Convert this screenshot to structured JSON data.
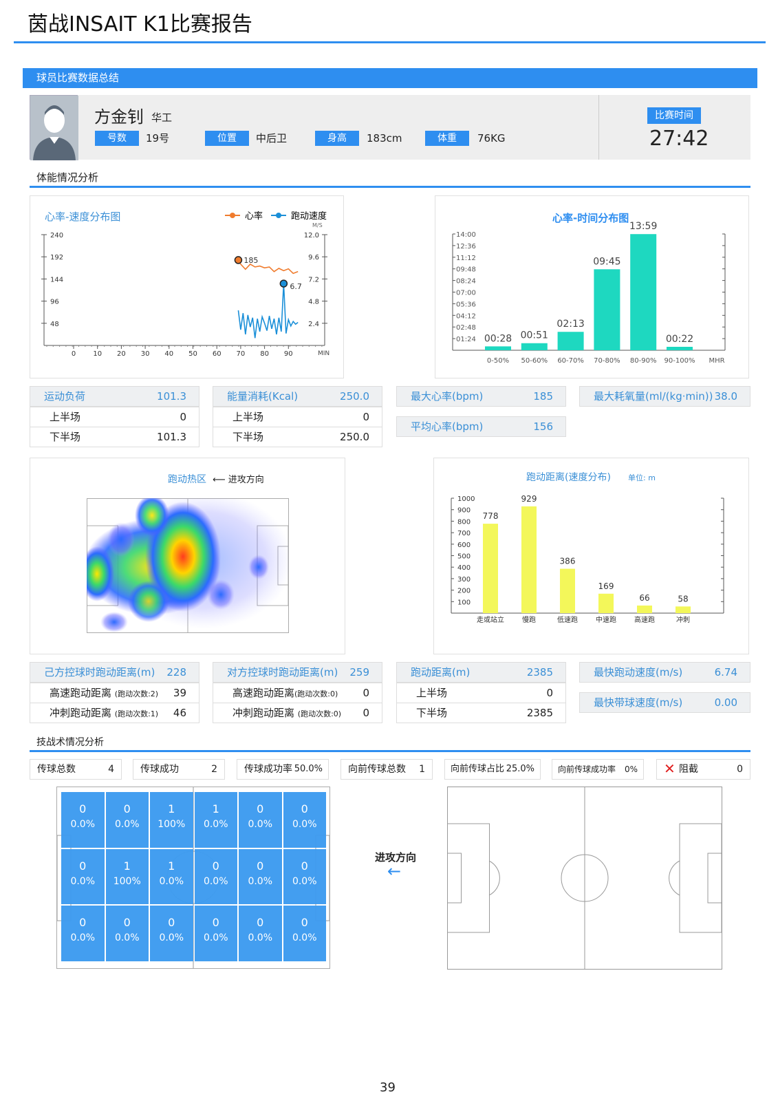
{
  "title": "茵战INSAIT K1比赛报告",
  "summary_section": "球员比赛数据总结",
  "player": {
    "name": "方金钊",
    "team": "华工",
    "number_label": "号数",
    "number": "19号",
    "position_label": "位置",
    "position": "中后卫",
    "height_label": "身高",
    "height": "183cm",
    "weight_label": "体重",
    "weight": "76KG",
    "match_time_label": "比赛时间",
    "match_time": "27:42"
  },
  "fitness_section": "体能情况分析",
  "hr_speed_chart": {
    "title": "心率-速度分布图",
    "legend_hr": "心率",
    "legend_speed": "跑动速度",
    "right_unit": "M/S",
    "x_unit": "MIN",
    "left_ticks": [
      "240",
      "192",
      "144",
      "96",
      "48"
    ],
    "right_ticks": [
      "12.0",
      "9.6",
      "7.2",
      "4.8",
      "2.4"
    ],
    "x_ticks": [
      "0",
      "10",
      "20",
      "30",
      "40",
      "50",
      "60",
      "70",
      "80",
      "90"
    ],
    "hr_peak_label": "185",
    "speed_peak_label": "6.7",
    "hr_color": "#f07c2e",
    "speed_color": "#1a8fd8"
  },
  "chart_data": [
    {
      "type": "line",
      "title": "心率-速度分布图",
      "xlabel": "MIN",
      "series": [
        {
          "name": "心率",
          "x": [
            69,
            70,
            72,
            74,
            76,
            78,
            80,
            82,
            84,
            86,
            88,
            90,
            92,
            94
          ],
          "values": [
            185,
            176,
            165,
            176,
            170,
            172,
            168,
            170,
            160,
            167,
            162,
            166,
            156,
            160
          ]
        },
        {
          "name": "跑动速度",
          "x": [
            69,
            70,
            71,
            72,
            73,
            74,
            75,
            76,
            77,
            78,
            79,
            80,
            81,
            82,
            83,
            84,
            85,
            86,
            87,
            88,
            89,
            90,
            91,
            92,
            93,
            94
          ],
          "values": [
            3.8,
            1.7,
            3.5,
            1.2,
            3.3,
            2.0,
            3.0,
            0.8,
            2.9,
            1.5,
            3.1,
            2.4,
            1.6,
            3.2,
            1.8,
            2.9,
            1.2,
            3.0,
            1.5,
            6.7,
            1.3,
            2.8,
            2.1,
            2.6,
            2.3,
            2.5
          ]
        }
      ],
      "ylim_left": [
        0,
        240
      ],
      "ylim_right": [
        0,
        12.0
      ],
      "xlim": [
        0,
        100
      ]
    },
    {
      "type": "bar",
      "title": "心率-时间分布图",
      "categories": [
        "0-50%",
        "50-60%",
        "60-70%",
        "70-80%",
        "80-90%",
        "90-100%"
      ],
      "values": [
        "00:28",
        "00:51",
        "02:13",
        "09:45",
        "13:59",
        "00:22"
      ],
      "xlabel": "MHR",
      "y_ticks": [
        "14:00",
        "12:36",
        "11:12",
        "09:48",
        "08:24",
        "07:00",
        "05:36",
        "04:12",
        "02:48",
        "01:24"
      ]
    },
    {
      "type": "bar",
      "title": "跑动距离(速度分布)",
      "unit": "单位: m",
      "categories": [
        "走或站立",
        "慢跑",
        "低速跑",
        "中速跑",
        "高速跑",
        "冲刺"
      ],
      "values": [
        778,
        929,
        386,
        169,
        66,
        58
      ],
      "y_ticks": [
        "1000",
        "900",
        "800",
        "700",
        "600",
        "500",
        "400",
        "300",
        "200",
        "100"
      ],
      "ylim": [
        0,
        1000
      ]
    }
  ],
  "hr_time_chart": {
    "color": "#1ed8c0"
  },
  "run_dist_chart": {
    "color": "#f3f75a"
  },
  "load": {
    "label": "运动负荷",
    "value": "101.3",
    "h1_label": "上半场",
    "h1": "0",
    "h2_label": "下半场",
    "h2": "101.3"
  },
  "energy": {
    "label": "能量消耗(Kcal)",
    "value": "250.0",
    "h1_label": "上半场",
    "h1": "0",
    "h2_label": "下半场",
    "h2": "250.0"
  },
  "max_hr": {
    "label": "最大心率(bpm)",
    "value": "185"
  },
  "avg_hr": {
    "label": "平均心率(bpm)",
    "value": "156"
  },
  "vo2": {
    "label": "最大耗氧量(ml/(kg·min))",
    "value": "38.0"
  },
  "heatmap": {
    "title": "跑动热区",
    "direction": "进攻方向"
  },
  "own_poss": {
    "label": "己方控球时跑动距离(m)",
    "value": "228",
    "hs_label": "高速跑动距离",
    "hs_count": "(跑动次数:2)",
    "hs": "39",
    "sp_label": "冲刺跑动距离",
    "sp_count": "(跑动次数:1)",
    "sp": "46"
  },
  "opp_poss": {
    "label": "对方控球时跑动距离(m)",
    "value": "259",
    "hs_label": "高速跑动距离",
    "hs_count": "(跑动次数:0)",
    "hs": "0",
    "sp_label": "冲刺跑动距离",
    "sp_count": "(跑动次数:0)",
    "sp": "0"
  },
  "run_dist": {
    "label": "跑动距离(m)",
    "value": "2385",
    "h1_label": "上半场",
    "h1": "0",
    "h2_label": "下半场",
    "h2": "2385"
  },
  "fastest_run": {
    "label": "最快跑动速度(m/s)",
    "value": "6.74"
  },
  "fastest_dribble": {
    "label": "最快带球速度(m/s)",
    "value": "0.00"
  },
  "skill_section": "技战术情况分析",
  "skills": [
    {
      "label": "传球总数",
      "value": "4"
    },
    {
      "label": "传球成功",
      "value": "2"
    },
    {
      "label": "传球成功率",
      "value": "50.0%"
    },
    {
      "label": "向前传球总数",
      "value": "1"
    },
    {
      "label": "向前传球占比",
      "value": "25.0%"
    },
    {
      "label": "向前传球成功率",
      "value": "0%"
    },
    {
      "label": "阻截",
      "value": "0"
    }
  ],
  "pass_grid": [
    [
      {
        "n": "0",
        "p": "0.0%"
      },
      {
        "n": "0",
        "p": "0.0%"
      },
      {
        "n": "1",
        "p": "100%"
      },
      {
        "n": "1",
        "p": "0.0%"
      },
      {
        "n": "0",
        "p": "0.0%"
      },
      {
        "n": "0",
        "p": "0.0%"
      }
    ],
    [
      {
        "n": "0",
        "p": "0.0%"
      },
      {
        "n": "1",
        "p": "100%"
      },
      {
        "n": "1",
        "p": "0.0%"
      },
      {
        "n": "0",
        "p": "0.0%"
      },
      {
        "n": "0",
        "p": "0.0%"
      },
      {
        "n": "0",
        "p": "0.0%"
      }
    ],
    [
      {
        "n": "0",
        "p": "0.0%"
      },
      {
        "n": "0",
        "p": "0.0%"
      },
      {
        "n": "0",
        "p": "0.0%"
      },
      {
        "n": "0",
        "p": "0.0%"
      },
      {
        "n": "0",
        "p": "0.0%"
      },
      {
        "n": "0",
        "p": "0.0%"
      }
    ]
  ],
  "attack_direction": "进攻方向",
  "arrow": "←",
  "page_number": "39"
}
